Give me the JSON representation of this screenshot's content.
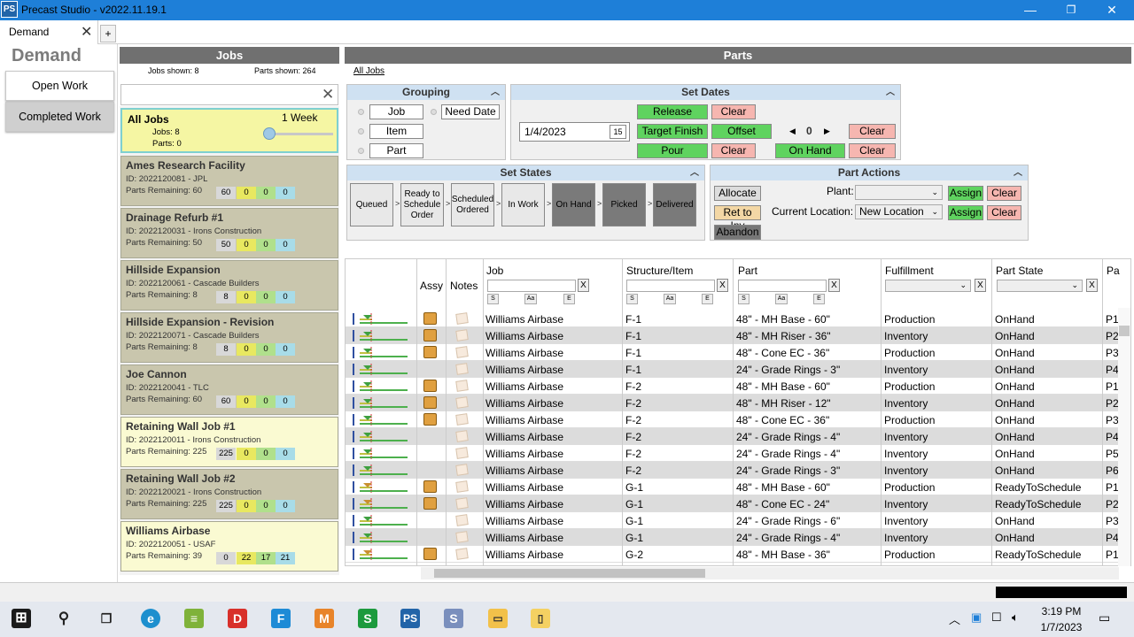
{
  "window": {
    "app_icon": "PS",
    "title": "Precast Studio - v2022.11.19.1"
  },
  "tabs": {
    "active": "Demand",
    "add": "+"
  },
  "nav": {
    "heading": "Demand",
    "open_work": "Open Work",
    "completed_work": "Completed Work"
  },
  "jobs_panel": {
    "title": "Jobs",
    "jobs_shown": "Jobs shown: 8",
    "parts_shown": "Parts shown: 264",
    "all_jobs": {
      "name": "All Jobs",
      "week": "1 Week",
      "jobs": "Jobs: 8",
      "parts": "Parts: 0"
    },
    "jobs": [
      {
        "name": "Ames Research Facility",
        "id": "ID: 2022120081 - JPL",
        "remaining": "Parts Remaining: 60",
        "c": [
          "60",
          "0",
          "0",
          "0"
        ],
        "style": "khaki"
      },
      {
        "name": "Drainage Refurb #1",
        "id": "ID: 2022120031 - Irons Construction",
        "remaining": "Parts Remaining: 50",
        "c": [
          "50",
          "0",
          "0",
          "0"
        ],
        "style": "khaki"
      },
      {
        "name": "Hillside Expansion",
        "id": "ID: 2022120061 - Cascade Builders",
        "remaining": "Parts Remaining: 8",
        "c": [
          "8",
          "0",
          "0",
          "0"
        ],
        "style": "khaki"
      },
      {
        "name": "Hillside Expansion - Revision",
        "id": "ID: 2022120071 - Cascade Builders",
        "remaining": "Parts Remaining: 8",
        "c": [
          "8",
          "0",
          "0",
          "0"
        ],
        "style": "khaki"
      },
      {
        "name": "Joe Cannon",
        "id": "ID: 2022120041 - TLC",
        "remaining": "Parts Remaining: 60",
        "c": [
          "60",
          "0",
          "0",
          "0"
        ],
        "style": "khaki"
      },
      {
        "name": "Retaining Wall Job #1",
        "id": "ID: 2022120011 - Irons Construction",
        "remaining": "Parts Remaining: 225",
        "c": [
          "225",
          "0",
          "0",
          "0"
        ],
        "style": "cream"
      },
      {
        "name": "Retaining Wall Job #2",
        "id": "ID: 2022120021 - Irons Construction",
        "remaining": "Parts Remaining: 225",
        "c": [
          "225",
          "0",
          "0",
          "0"
        ],
        "style": "khaki"
      },
      {
        "name": "Williams Airbase",
        "id": "ID: 2022120051 - USAF",
        "remaining": "Parts Remaining: 39",
        "c": [
          "0",
          "22",
          "17",
          "21"
        ],
        "style": "cream"
      }
    ]
  },
  "parts_panel": {
    "title": "Parts",
    "breadcrumb": "All Jobs",
    "grouping": {
      "title": "Grouping",
      "job": "Job",
      "item": "Item",
      "part": "Part",
      "need_date": "Need Date"
    },
    "set_dates": {
      "title": "Set Dates",
      "date": "1/4/2023",
      "cal": "15",
      "release": "Release",
      "clear": "Clear",
      "target_finish": "Target Finish",
      "offset": "Offset",
      "pour": "Pour",
      "on_hand": "On Hand",
      "offset_value": "0"
    },
    "set_states": {
      "title": "Set States",
      "states": [
        "Queued",
        "Ready to Schedule Order",
        "Scheduled Ordered",
        "In Work",
        "On Hand",
        "Picked",
        "Delivered"
      ]
    },
    "part_actions": {
      "title": "Part Actions",
      "allocate": "Allocate",
      "ret_to_inv": "Ret to Inv",
      "abandon": "Abandon",
      "plant_label": "Plant:",
      "plant_value": "",
      "location_label": "Current Location:",
      "location_value": "New Location",
      "assign": "Assign",
      "clear": "Clear"
    },
    "grid": {
      "columns": {
        "assy": "Assy",
        "notes": "Notes",
        "job": "Job",
        "structure": "Structure/Item",
        "part": "Part",
        "fulfillment": "Fulfillment",
        "part_state": "Part State",
        "more": "Pa"
      },
      "filter_buttons": {
        "s": "S",
        "aa": "Aa",
        "e": "E",
        "x": "X"
      },
      "rows": [
        {
          "job": "Williams Airbase",
          "structure": "F-1",
          "part": "48\" - MH Base - 60\"",
          "fulfillment": "Production",
          "state": "OnHand",
          "more": "P1",
          "assy": true
        },
        {
          "job": "Williams Airbase",
          "structure": "F-1",
          "part": "48\" - MH Riser - 36\"",
          "fulfillment": "Inventory",
          "state": "OnHand",
          "more": "P2",
          "assy": true
        },
        {
          "job": "Williams Airbase",
          "structure": "F-1",
          "part": "48\" - Cone EC - 36\"",
          "fulfillment": "Production",
          "state": "OnHand",
          "more": "P3",
          "assy": true
        },
        {
          "job": "Williams Airbase",
          "structure": "F-1",
          "part": "24\" - Grade Rings - 3\"",
          "fulfillment": "Inventory",
          "state": "OnHand",
          "more": "P4",
          "assy": false
        },
        {
          "job": "Williams Airbase",
          "structure": "F-2",
          "part": "48\" - MH Base - 60\"",
          "fulfillment": "Production",
          "state": "OnHand",
          "more": "P1",
          "assy": true
        },
        {
          "job": "Williams Airbase",
          "structure": "F-2",
          "part": "48\" - MH Riser - 12\"",
          "fulfillment": "Inventory",
          "state": "OnHand",
          "more": "P2",
          "assy": true
        },
        {
          "job": "Williams Airbase",
          "structure": "F-2",
          "part": "48\" - Cone EC - 36\"",
          "fulfillment": "Production",
          "state": "OnHand",
          "more": "P3",
          "assy": true
        },
        {
          "job": "Williams Airbase",
          "structure": "F-2",
          "part": "24\" - Grade Rings - 4\"",
          "fulfillment": "Inventory",
          "state": "OnHand",
          "more": "P4",
          "assy": false
        },
        {
          "job": "Williams Airbase",
          "structure": "F-2",
          "part": "24\" - Grade Rings - 4\"",
          "fulfillment": "Inventory",
          "state": "OnHand",
          "more": "P5",
          "assy": false
        },
        {
          "job": "Williams Airbase",
          "structure": "F-2",
          "part": "24\" - Grade Rings - 3\"",
          "fulfillment": "Inventory",
          "state": "OnHand",
          "more": "P6",
          "assy": false
        },
        {
          "job": "Williams Airbase",
          "structure": "G-1",
          "part": "48\" - MH Base - 60\"",
          "fulfillment": "Production",
          "state": "ReadyToSchedule",
          "more": "P1",
          "assy": true
        },
        {
          "job": "Williams Airbase",
          "structure": "G-1",
          "part": "48\" - Cone EC - 24\"",
          "fulfillment": "Inventory",
          "state": "ReadyToSchedule",
          "more": "P2",
          "assy": true
        },
        {
          "job": "Williams Airbase",
          "structure": "G-1",
          "part": "24\" - Grade Rings - 6\"",
          "fulfillment": "Inventory",
          "state": "OnHand",
          "more": "P3",
          "assy": false
        },
        {
          "job": "Williams Airbase",
          "structure": "G-1",
          "part": "24\" - Grade Rings - 4\"",
          "fulfillment": "Inventory",
          "state": "OnHand",
          "more": "P4",
          "assy": false
        },
        {
          "job": "Williams Airbase",
          "structure": "G-2",
          "part": "48\" - MH Base - 36\"",
          "fulfillment": "Production",
          "state": "ReadyToSchedule",
          "more": "P1",
          "assy": true
        }
      ]
    }
  },
  "taskbar": {
    "icons": [
      "windows-start-icon",
      "search-icon",
      "task-view-icon",
      "edge-icon",
      "notepad-icon",
      "D",
      "F",
      "M",
      "S",
      "PS",
      "sql-icon",
      "file-explorer-icon",
      "folder-icon"
    ],
    "time": "3:19 PM",
    "date": "1/7/2023"
  },
  "colors": {
    "titlebar": "#1e7fd8",
    "section_header": "#cfe1f2",
    "green_button": "#5fd35f",
    "pink_button": "#f6b6b0",
    "tan_button": "#f3d7a5"
  }
}
